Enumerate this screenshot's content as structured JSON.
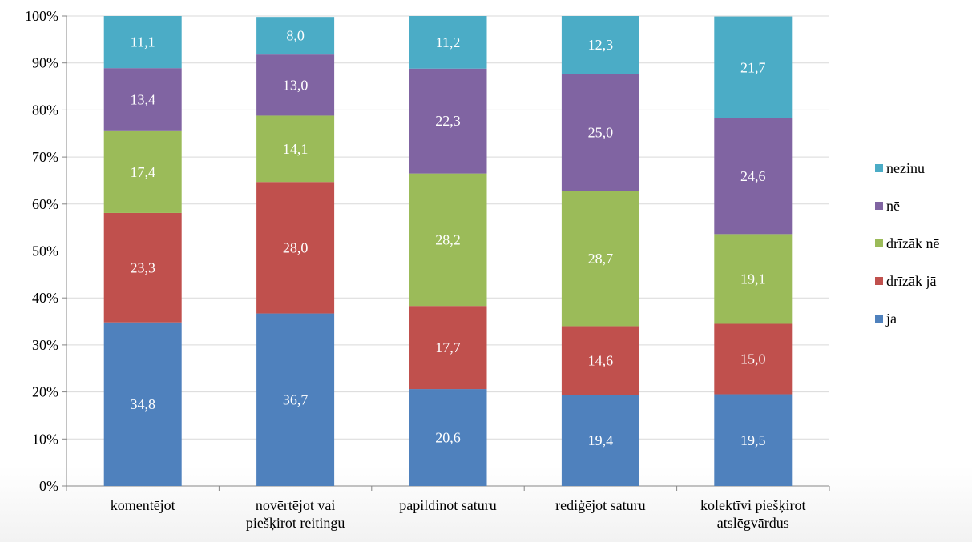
{
  "chart_data": {
    "type": "bar",
    "stacked": true,
    "percent_stacked": true,
    "categories": [
      [
        "komentējot"
      ],
      [
        "novērtējot vai",
        "piešķirot reitingu"
      ],
      [
        "papildinot saturu"
      ],
      [
        "rediģējot saturu"
      ],
      [
        "kolektīvi piešķirot",
        "atslēgvārdus"
      ]
    ],
    "series": [
      {
        "name": "jā",
        "color": "#4F81BD",
        "values": [
          34.8,
          36.7,
          20.6,
          19.4,
          19.5
        ]
      },
      {
        "name": "drīzāk jā",
        "color": "#C0504D",
        "values": [
          23.3,
          28.0,
          17.7,
          14.6,
          15.0
        ]
      },
      {
        "name": "drīzāk nē",
        "color": "#9BBB59",
        "values": [
          17.4,
          14.1,
          28.2,
          28.7,
          19.1
        ]
      },
      {
        "name": "nē",
        "color": "#8064A2",
        "values": [
          13.4,
          13.0,
          22.3,
          25.0,
          24.6
        ]
      },
      {
        "name": "nezinu",
        "color": "#4BACC6",
        "values": [
          11.1,
          8.0,
          11.2,
          12.3,
          21.7
        ]
      }
    ],
    "data_labels": [
      [
        "34,8",
        "36,7",
        "20,6",
        "19,4",
        "19,5"
      ],
      [
        "23,3",
        "28,0",
        "17,7",
        "14,6",
        "15,0"
      ],
      [
        "17,4",
        "14,1",
        "28,2",
        "28,7",
        "19,1"
      ],
      [
        "13,4",
        "13,0",
        "22,3",
        "25,0",
        "24,6"
      ],
      [
        "11,1",
        "8,0",
        "11,2",
        "12,3",
        "21,7"
      ]
    ],
    "yticks": [
      "0%",
      "10%",
      "20%",
      "30%",
      "40%",
      "50%",
      "60%",
      "70%",
      "80%",
      "90%",
      "100%"
    ],
    "ylim": [
      0,
      100
    ],
    "grid": true,
    "legend_position": "right",
    "legend_order": [
      "nezinu",
      "nē",
      "drīzāk nē",
      "drīzāk jā",
      "jā"
    ]
  }
}
